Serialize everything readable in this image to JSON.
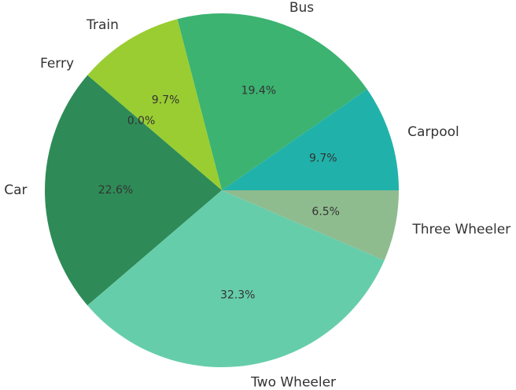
{
  "chart_data": {
    "type": "pie",
    "title": "",
    "start_angle_deg": 0,
    "direction": "counterclockwise",
    "slices": [
      {
        "label": "Carpool",
        "value": 9.7,
        "pct_label": "9.7%",
        "color": "#20b2aa"
      },
      {
        "label": "Bus",
        "value": 19.4,
        "pct_label": "19.4%",
        "color": "#3cb371"
      },
      {
        "label": "Train",
        "value": 9.7,
        "pct_label": "9.7%",
        "color": "#9acd32"
      },
      {
        "label": "Ferry",
        "value": 0.0,
        "pct_label": "0.0%",
        "color": "#556b2f"
      },
      {
        "label": "Car",
        "value": 22.6,
        "pct_label": "22.6%",
        "color": "#2e8b57"
      },
      {
        "label": "Two Wheeler",
        "value": 32.3,
        "pct_label": "32.3%",
        "color": "#66cdaa"
      },
      {
        "label": "Three Wheeler",
        "value": 6.5,
        "pct_label": "6.5%",
        "color": "#8fbc8f"
      }
    ]
  }
}
